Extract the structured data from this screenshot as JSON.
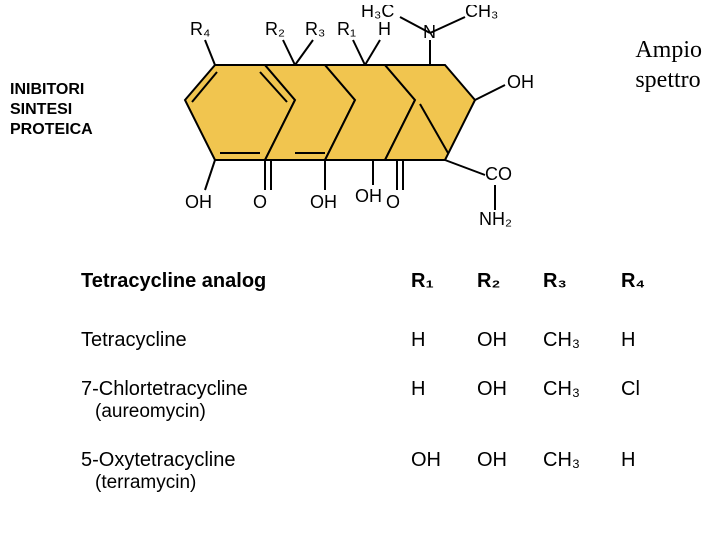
{
  "left_text": "INIBITORI\nSINTESI\nPROTEICA",
  "right_text": "Ampio\nspettro",
  "structure": {
    "ring_fill": "#f1c54f",
    "ring_stroke": "#000000",
    "bond_stroke": "#000000",
    "labels": {
      "r4": "R₄",
      "r2": "R₂",
      "r3": "R₃",
      "r1": "R₁",
      "h_top": "H",
      "h3c": "H₃C",
      "ch3": "CH₃",
      "n_top": "N",
      "oh_right": "OH",
      "co": "CO",
      "nh2": "NH₂",
      "oh_bl": "OH",
      "o_left": "O",
      "oh_mid": "OH",
      "oh_mid2": "OH",
      "o_right": "O"
    }
  },
  "table": {
    "title": "Tetracycline analog",
    "cols": [
      "R₁",
      "R₂",
      "R₃",
      "R₄"
    ],
    "rows": [
      {
        "name": "Tetracycline",
        "sub": "",
        "r1": "H",
        "r2": "OH",
        "r3": "CH₃",
        "r4": "H"
      },
      {
        "name": "7-Chlortetracycline",
        "sub": "(aureomycin)",
        "r1": "H",
        "r2": "OH",
        "r3": "CH₃",
        "r4": "Cl"
      },
      {
        "name": "5-Oxytetracycline",
        "sub": "(terramycin)",
        "r1": "OH",
        "r2": "OH",
        "r3": "CH₃",
        "r4": "H"
      }
    ]
  }
}
